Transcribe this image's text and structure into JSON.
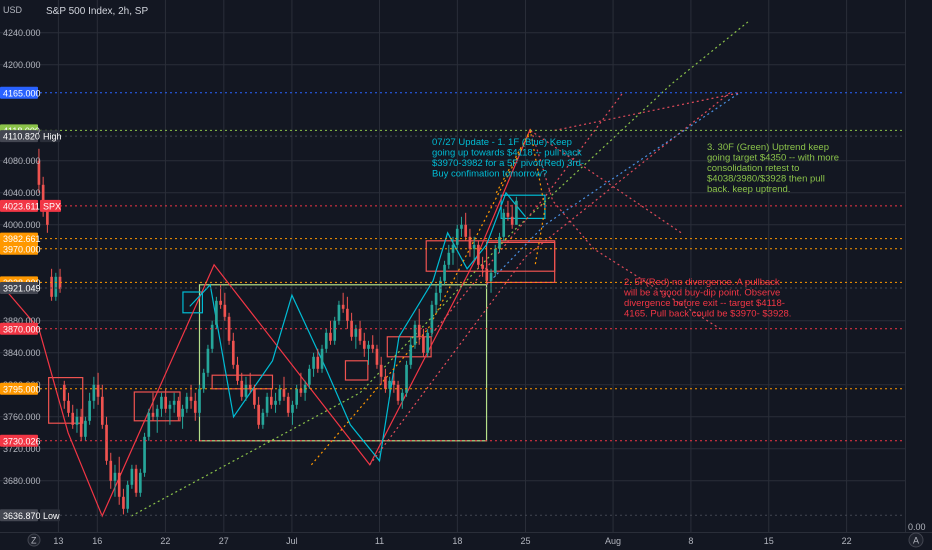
{
  "header": {
    "currency": "USD",
    "symbol_title": "S&P 500 Index, 2h, SP",
    "tz_icon": "Z",
    "log_icon": "A"
  },
  "colors": {
    "background": "#131722",
    "grid": "#2a2e39",
    "up": "#26a69a",
    "down": "#ef5350",
    "blue": "#2962ff",
    "green_line": "#8bc34a",
    "red_line": "#f23645",
    "orange": "#ff9800",
    "cyan": "#00bcd4",
    "pink": "#e91e63"
  },
  "chart_data": {
    "type": "candlestick",
    "title": "S&P 500 Index, 2h, SP",
    "ylabel": "USD",
    "ylim": [
      3616,
      4256
    ],
    "y_ticks": [
      3680,
      3720,
      3760,
      3800,
      3840,
      3880,
      4000,
      4040,
      4080,
      4200,
      4240
    ],
    "y_tick_labels": [
      "3680.000",
      "3720.000",
      "3760.000",
      "3800.000",
      "3840.000",
      "3880.000",
      "4000.000",
      "4040.000",
      "4080.000",
      "4200.000",
      "4240.000"
    ],
    "x_tick_labels": [
      "13",
      "16",
      "22",
      "27",
      "Jul",
      "11",
      "18",
      "25",
      "Aug",
      "8",
      "15",
      "22"
    ],
    "x_tick_pos": [
      2,
      6,
      13,
      19,
      26,
      35,
      43,
      50,
      59,
      67,
      75,
      83
    ],
    "x_range": [
      -4,
      89
    ],
    "grid": true,
    "price_levels": [
      {
        "value": 4165.0,
        "label": "4165.000",
        "color": "#2962ff"
      },
      {
        "value": 4118.0,
        "label": "4118.000",
        "color": "#8bc34a"
      },
      {
        "value": 4110.82,
        "label": "4110.820",
        "color": "#434651",
        "tag": "High"
      },
      {
        "value": 4023.611,
        "label": "4023.611",
        "color": "#f23645",
        "tag": "SPX"
      },
      {
        "value": 3982.661,
        "label": "3982.661",
        "color": "#ff9800"
      },
      {
        "value": 3970.0,
        "label": "3970.000",
        "color": "#ff9800"
      },
      {
        "value": 3928.0,
        "label": "3928.000",
        "color": "#ff9800"
      },
      {
        "value": 3921.049,
        "label": "3921.049",
        "color": "#434651"
      },
      {
        "value": 3870.0,
        "label": "3870.000",
        "color": "#f23645"
      },
      {
        "value": 3795.0,
        "label": "3795.000",
        "color": "#ff9800"
      },
      {
        "value": 3730.026,
        "label": "3730.026",
        "color": "#f23645"
      },
      {
        "value": 3636.87,
        "label": "3636.870",
        "color": "#434651",
        "tag": "Low"
      }
    ],
    "candles_x_start": 0,
    "candles_x_step": 0.42,
    "candles": [
      [
        4080,
        4095,
        4040,
        4050
      ],
      [
        4050,
        4060,
        4010,
        4020
      ],
      [
        4020,
        4030,
        3990,
        4000
      ],
      [
        3935,
        3945,
        3905,
        3910
      ],
      [
        3910,
        3940,
        3905,
        3935
      ],
      [
        3935,
        3945,
        3915,
        3920
      ],
      [
        3800,
        3805,
        3770,
        3780
      ],
      [
        3780,
        3790,
        3760,
        3765
      ],
      [
        3765,
        3775,
        3745,
        3750
      ],
      [
        3750,
        3770,
        3740,
        3760
      ],
      [
        3760,
        3770,
        3730,
        3735
      ],
      [
        3735,
        3760,
        3730,
        3755
      ],
      [
        3755,
        3790,
        3750,
        3780
      ],
      [
        3780,
        3810,
        3770,
        3800
      ],
      [
        3800,
        3815,
        3775,
        3785
      ],
      [
        3785,
        3800,
        3745,
        3750
      ],
      [
        3750,
        3760,
        3700,
        3705
      ],
      [
        3705,
        3715,
        3670,
        3680
      ],
      [
        3680,
        3700,
        3660,
        3690
      ],
      [
        3690,
        3710,
        3650,
        3660
      ],
      [
        3660,
        3670,
        3638,
        3645
      ],
      [
        3645,
        3680,
        3640,
        3675
      ],
      [
        3675,
        3700,
        3670,
        3695
      ],
      [
        3695,
        3700,
        3660,
        3665
      ],
      [
        3665,
        3695,
        3660,
        3690
      ],
      [
        3690,
        3740,
        3685,
        3735
      ],
      [
        3735,
        3770,
        3730,
        3765
      ],
      [
        3765,
        3790,
        3755,
        3760
      ],
      [
        3760,
        3775,
        3740,
        3770
      ],
      [
        3770,
        3790,
        3760,
        3785
      ],
      [
        3785,
        3795,
        3765,
        3770
      ],
      [
        3770,
        3780,
        3750,
        3775
      ],
      [
        3775,
        3790,
        3765,
        3780
      ],
      [
        3780,
        3785,
        3755,
        3760
      ],
      [
        3760,
        3775,
        3745,
        3770
      ],
      [
        3770,
        3790,
        3765,
        3785
      ],
      [
        3785,
        3800,
        3770,
        3780
      ],
      [
        3780,
        3790,
        3755,
        3765
      ],
      [
        3765,
        3800,
        3760,
        3795
      ],
      [
        3795,
        3820,
        3790,
        3815
      ],
      [
        3815,
        3850,
        3810,
        3845
      ],
      [
        3845,
        3880,
        3840,
        3875
      ],
      [
        3875,
        3910,
        3870,
        3905
      ],
      [
        3905,
        3925,
        3895,
        3900
      ],
      [
        3900,
        3915,
        3880,
        3885
      ],
      [
        3885,
        3890,
        3850,
        3855
      ],
      [
        3855,
        3865,
        3820,
        3825
      ],
      [
        3825,
        3835,
        3800,
        3805
      ],
      [
        3805,
        3815,
        3780,
        3785
      ],
      [
        3785,
        3810,
        3780,
        3800
      ],
      [
        3800,
        3815,
        3790,
        3795
      ],
      [
        3795,
        3800,
        3770,
        3775
      ],
      [
        3775,
        3785,
        3745,
        3750
      ],
      [
        3750,
        3770,
        3745,
        3765
      ],
      [
        3765,
        3790,
        3760,
        3785
      ],
      [
        3785,
        3795,
        3770,
        3775
      ],
      [
        3775,
        3790,
        3765,
        3780
      ],
      [
        3780,
        3800,
        3775,
        3795
      ],
      [
        3795,
        3810,
        3780,
        3785
      ],
      [
        3785,
        3790,
        3760,
        3765
      ],
      [
        3765,
        3780,
        3750,
        3775
      ],
      [
        3775,
        3800,
        3770,
        3795
      ],
      [
        3795,
        3815,
        3785,
        3790
      ],
      [
        3790,
        3805,
        3780,
        3800
      ],
      [
        3800,
        3825,
        3795,
        3820
      ],
      [
        3820,
        3840,
        3810,
        3835
      ],
      [
        3835,
        3845,
        3815,
        3820
      ],
      [
        3820,
        3850,
        3815,
        3845
      ],
      [
        3845,
        3870,
        3840,
        3865
      ],
      [
        3865,
        3880,
        3850,
        3855
      ],
      [
        3855,
        3885,
        3850,
        3880
      ],
      [
        3880,
        3905,
        3875,
        3900
      ],
      [
        3900,
        3915,
        3890,
        3895
      ],
      [
        3895,
        3910,
        3870,
        3880
      ],
      [
        3880,
        3890,
        3855,
        3860
      ],
      [
        3860,
        3875,
        3845,
        3870
      ],
      [
        3870,
        3880,
        3850,
        3855
      ],
      [
        3855,
        3865,
        3835,
        3845
      ],
      [
        3845,
        3855,
        3825,
        3850
      ],
      [
        3850,
        3862,
        3840,
        3845
      ],
      [
        3845,
        3850,
        3820,
        3825
      ],
      [
        3825,
        3835,
        3800,
        3810
      ],
      [
        3810,
        3820,
        3790,
        3795
      ],
      [
        3795,
        3810,
        3785,
        3805
      ],
      [
        3805,
        3815,
        3790,
        3800
      ],
      [
        3800,
        3805,
        3775,
        3780
      ],
      [
        3780,
        3795,
        3770,
        3790
      ],
      [
        3790,
        3830,
        3785,
        3825
      ],
      [
        3825,
        3860,
        3820,
        3850
      ],
      [
        3850,
        3880,
        3845,
        3875
      ],
      [
        3875,
        3895,
        3850,
        3860
      ],
      [
        3860,
        3870,
        3835,
        3840
      ],
      [
        3840,
        3870,
        3835,
        3865
      ],
      [
        3865,
        3905,
        3860,
        3900
      ],
      [
        3900,
        3925,
        3890,
        3915
      ],
      [
        3915,
        3935,
        3905,
        3930
      ],
      [
        3930,
        3955,
        3925,
        3950
      ],
      [
        3950,
        3975,
        3945,
        3965
      ],
      [
        3965,
        3985,
        3950,
        3975
      ],
      [
        3975,
        4000,
        3970,
        3995
      ],
      [
        3995,
        4010,
        3985,
        4000
      ],
      [
        4000,
        4015,
        3980,
        3985
      ],
      [
        3985,
        3995,
        3960,
        3970
      ],
      [
        3970,
        3985,
        3955,
        3975
      ],
      [
        3975,
        3980,
        3945,
        3950
      ],
      [
        3950,
        3960,
        3935,
        3945
      ],
      [
        3945,
        3955,
        3925,
        3930
      ],
      [
        3930,
        3945,
        3915,
        3940
      ],
      [
        3940,
        3975,
        3935,
        3970
      ],
      [
        3970,
        3990,
        3965,
        3985
      ],
      [
        3985,
        4020,
        3980,
        4015
      ],
      [
        4015,
        4030,
        4005,
        4010
      ],
      [
        4010,
        4025,
        3995,
        4000
      ],
      [
        4000,
        4035,
        4000,
        4030
      ]
    ],
    "annotations": [
      {
        "id": "blue",
        "lines": [
          "07/27 Update - 1. 1F (Blue) Keep",
          "going up towards $4118 -- pull back",
          "$3970-3982 for a 5F pivot(Red) 3rd-",
          "Buy confimation tomorrow?"
        ],
        "color": "#00bcd4"
      },
      {
        "id": "green",
        "lines": [
          "3. 30F (Green) Uptrend keep",
          "going target $4350  -- with more",
          "consolidation retest to",
          "$4038/3980/$3928 then pull",
          "back. keep uptrend."
        ],
        "color": "#8bc34a"
      },
      {
        "id": "red",
        "lines": [
          "2. 5F(Red) no divergence. A pullback",
          "will be a good buy-dip point. Observe",
          "divergence before exit -- target $4118-",
          "4165. Pull back could be $3970- $3928."
        ],
        "color": "#f23645"
      }
    ]
  },
  "footer": {
    "zero_label": "0.00"
  }
}
